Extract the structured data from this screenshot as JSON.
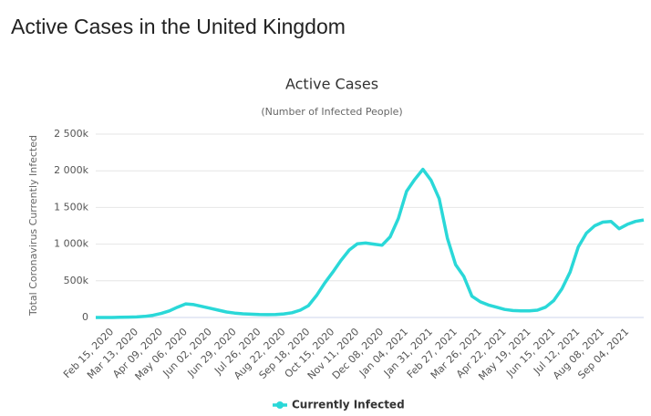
{
  "page_title": "Active Cases in the United Kingdom",
  "chart_data": {
    "type": "line",
    "title": "Active Cases",
    "subtitle": "(Number of Infected People)",
    "y_label": "Total Coronavirus Currently Infected",
    "categories": [
      null,
      null,
      "Feb 15, 2020",
      null,
      null,
      "Mar 13, 2020",
      null,
      null,
      "Apr 09, 2020",
      null,
      null,
      "May 06, 2020",
      null,
      null,
      "Jun 02, 2020",
      null,
      null,
      "Jun 29, 2020",
      null,
      null,
      "Jul 26, 2020",
      null,
      null,
      "Aug 22, 2020",
      null,
      null,
      "Sep 18, 2020",
      null,
      null,
      "Oct 15, 2020",
      null,
      null,
      "Nov 11, 2020",
      null,
      null,
      "Dec 08, 2020",
      null,
      null,
      "Jan 04, 2021",
      null,
      null,
      "Jan 31, 2021",
      null,
      null,
      "Feb 27, 2021",
      null,
      null,
      "Mar 26, 2021",
      null,
      null,
      "Apr 22, 2021",
      null,
      null,
      "May 19, 2021",
      null,
      null,
      "Jun 15, 2021",
      null,
      null,
      "Jul 12, 2021",
      null,
      null,
      "Aug 08, 2021",
      null,
      null,
      "Sep 04, 2021",
      null,
      null
    ],
    "series": [
      {
        "name": "Currently Infected",
        "color": "#2ad8d8",
        "values": [
          0,
          0,
          0,
          2000,
          5000,
          8000,
          15000,
          30000,
          55000,
          90000,
          140000,
          185000,
          175000,
          150000,
          125000,
          100000,
          75000,
          60000,
          50000,
          45000,
          40000,
          38000,
          40000,
          48000,
          65000,
          100000,
          160000,
          300000,
          470000,
          620000,
          780000,
          920000,
          1005000,
          1015000,
          1000000,
          985000,
          1100000,
          1350000,
          1720000,
          1880000,
          2020000,
          1870000,
          1620000,
          1080000,
          720000,
          560000,
          290000,
          215000,
          170000,
          140000,
          110000,
          95000,
          90000,
          90000,
          100000,
          140000,
          230000,
          390000,
          620000,
          960000,
          1150000,
          1250000,
          1300000,
          1310000,
          1210000,
          1270000,
          1310000,
          1330000
        ]
      }
    ],
    "ylim": [
      0,
      2500000
    ],
    "yticks": [
      0,
      {
        "value": 500000,
        "label": "500k"
      },
      {
        "value": 1000000,
        "label": "1 000k"
      },
      {
        "value": 1500000,
        "label": "1 500k"
      },
      {
        "value": 2000000,
        "label": "2 000k"
      },
      {
        "value": 2500000,
        "label": "2 500k"
      }
    ],
    "grid": true,
    "legend": "bottom"
  }
}
